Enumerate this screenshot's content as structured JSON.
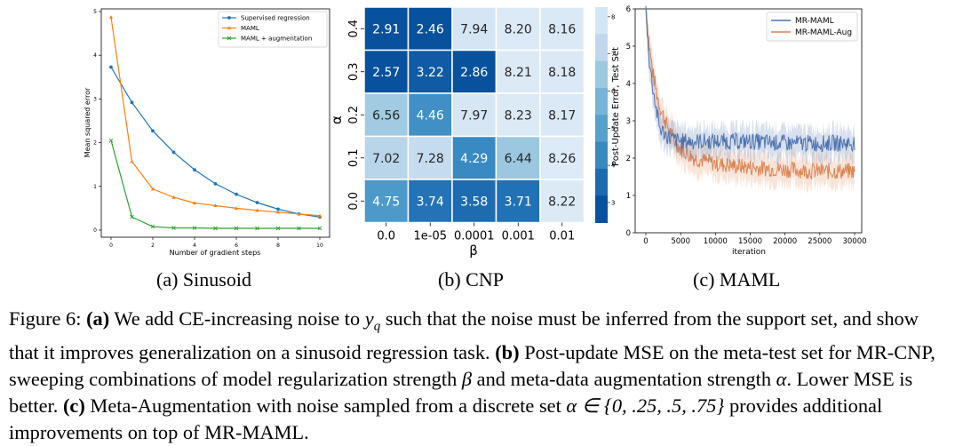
{
  "chart_data": [
    {
      "type": "line",
      "xlabel": "Number of gradient steps",
      "ylabel": "Mean squared error",
      "xlim": [
        0,
        10
      ],
      "ylim": [
        0,
        5
      ],
      "xticks": [
        0,
        2,
        4,
        6,
        8,
        10
      ],
      "yticks": [
        0,
        1,
        2,
        3,
        4,
        5
      ],
      "legend_position": "top-right",
      "x": [
        0,
        1,
        2,
        3,
        4,
        5,
        6,
        7,
        8,
        9,
        10
      ],
      "series": [
        {
          "name": "Supervised regression",
          "color": "#1f77b4",
          "marker": "circle",
          "values": [
            3.73,
            2.92,
            2.27,
            1.78,
            1.38,
            1.06,
            0.82,
            0.63,
            0.48,
            0.37,
            0.3
          ]
        },
        {
          "name": "MAML",
          "color": "#ff7f0e",
          "marker": "triangle",
          "values": [
            4.87,
            1.57,
            0.94,
            0.75,
            0.62,
            0.56,
            0.5,
            0.45,
            0.41,
            0.37,
            0.33
          ]
        },
        {
          "name": "MAML + augmentation",
          "color": "#2ca02c",
          "marker": "x",
          "values": [
            2.05,
            0.3,
            0.08,
            0.05,
            0.05,
            0.04,
            0.04,
            0.04,
            0.04,
            0.04,
            0.04
          ]
        }
      ]
    },
    {
      "type": "heatmap",
      "xlabel": "β",
      "ylabel": "α",
      "x_categories": [
        "0.0",
        "1e-05",
        "0.0001",
        "0.001",
        "0.01"
      ],
      "y_categories": [
        "0.4",
        "0.3",
        "0.2",
        "0.1",
        "0.0"
      ],
      "values": [
        [
          2.91,
          2.46,
          7.94,
          8.2,
          8.16
        ],
        [
          2.57,
          3.22,
          2.86,
          8.21,
          8.18
        ],
        [
          6.56,
          4.46,
          7.97,
          8.23,
          8.17
        ],
        [
          7.02,
          7.28,
          4.29,
          6.44,
          8.26
        ],
        [
          4.75,
          3.74,
          3.58,
          3.71,
          8.22
        ]
      ],
      "colorbar_label": "Post-Update Error, Test Set",
      "colorbar_ticks": [
        3,
        4,
        5,
        6,
        7,
        8
      ],
      "colorscale": "Blues_r"
    },
    {
      "type": "line",
      "xlabel": "iteration",
      "ylabel": "",
      "xlim": [
        0,
        30000
      ],
      "ylim": [
        0,
        6
      ],
      "xticks": [
        0,
        5000,
        10000,
        15000,
        20000,
        25000,
        30000
      ],
      "yticks": [
        0,
        1,
        2,
        3,
        4,
        5,
        6
      ],
      "legend_position": "top-right",
      "x": [
        0,
        500,
        1000,
        1500,
        2000,
        3000,
        4000,
        5000,
        7000,
        10000,
        15000,
        20000,
        25000,
        30000
      ],
      "series": [
        {
          "name": "MR-MAML",
          "color": "#4c72b0",
          "values": [
            6.0,
            4.6,
            3.9,
            3.3,
            2.8,
            2.6,
            2.5,
            2.45,
            2.45,
            2.45,
            2.45,
            2.4,
            2.4,
            2.4
          ]
        },
        {
          "name": "MR-MAML-Aug",
          "color": "#dd8452",
          "values": [
            6.0,
            5.0,
            4.3,
            3.8,
            3.4,
            2.9,
            2.5,
            2.25,
            2.0,
            1.85,
            1.75,
            1.7,
            1.65,
            1.65
          ]
        }
      ]
    }
  ],
  "subcaptions": {
    "a": "(a) Sinusoid",
    "b": "(b) CNP",
    "c": "(c) MAML"
  },
  "caption": {
    "label": "Figure 6:",
    "a_tag": "(a)",
    "a_text_1": "We add CE-increasing noise to",
    "yq": "y",
    "yq_sub": "q",
    "a_text_2": "such that the noise must be inferred from the support set, and show that it improves generalization on a sinusoid regression task.",
    "b_tag": "(b)",
    "b_text_1": "Post-update MSE on the meta-test set for MR-CNP, sweeping combinations of model regularization strength",
    "beta": "β",
    "b_text_2": "and meta-data augmentation strength",
    "alpha": "α",
    "b_text_3": ". Lower MSE is better.",
    "c_tag": "(c)",
    "c_text_1": "Meta-Augmentation with noise sampled from a discrete set",
    "set_expr": "α ∈ {0, .25, .5, .75}",
    "c_text_2": "provides additional improvements on top of MR-MAML."
  }
}
